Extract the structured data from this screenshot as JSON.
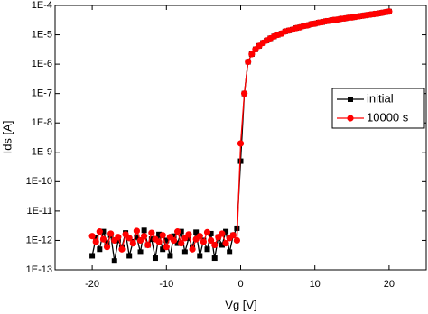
{
  "chart_data": {
    "type": "line",
    "x_label": "Vg [V]",
    "y_label": "Ids [A]",
    "x": [
      -20,
      -19.5,
      -19,
      -18.5,
      -18,
      -17.5,
      -17,
      -16.5,
      -16,
      -15.5,
      -15,
      -14.5,
      -14,
      -13.5,
      -13,
      -12.5,
      -12,
      -11.5,
      -11,
      -10.5,
      -10,
      -9.5,
      -9,
      -8.5,
      -8,
      -7.5,
      -7,
      -6.5,
      -6,
      -5.5,
      -5,
      -4.5,
      -4,
      -3.5,
      -3,
      -2.5,
      -2,
      -1.5,
      -1,
      -0.5,
      0,
      0.5,
      1,
      1.5,
      2,
      2.5,
      3,
      3.5,
      4,
      4.5,
      5,
      5.5,
      6,
      6.5,
      7,
      7.5,
      8,
      8.5,
      9,
      9.5,
      10,
      10.5,
      11,
      11.5,
      12,
      12.5,
      13,
      13.5,
      14,
      14.5,
      15,
      15.5,
      16,
      16.5,
      17,
      17.5,
      18,
      18.5,
      19,
      19.5,
      20
    ],
    "series": [
      {
        "name": "initial",
        "color": "#000000",
        "marker": "square",
        "values": [
          3e-13,
          1.2e-12,
          5e-13,
          2e-12,
          8e-13,
          1.5e-12,
          2e-13,
          1e-12,
          6e-13,
          1.8e-12,
          3e-13,
          9e-13,
          1.3e-12,
          4e-13,
          2.2e-12,
          7e-13,
          1.1e-12,
          2.5e-13,
          1.6e-12,
          5e-13,
          1e-12,
          3e-13,
          1.4e-12,
          8e-13,
          2e-12,
          4e-13,
          1.2e-12,
          6e-13,
          1.9e-12,
          3e-13,
          1e-12,
          5e-13,
          1.7e-12,
          2.5e-13,
          1.3e-12,
          7e-13,
          2e-12,
          4e-13,
          1.5e-12,
          2.6e-12,
          5e-10,
          1e-07,
          1.2e-06,
          2.2e-06,
          3.2e-06,
          4.2e-06,
          5.3e-06,
          6.4e-06,
          7.6e-06,
          8.8e-06,
          1e-05,
          1.1e-05,
          1.3e-05,
          1.4e-05,
          1.5e-05,
          1.7e-05,
          1.8e-05,
          2e-05,
          2.1e-05,
          2.3e-05,
          2.4e-05,
          2.6e-05,
          2.7e-05,
          2.9e-05,
          3e-05,
          3.2e-05,
          3.3e-05,
          3.5e-05,
          3.6e-05,
          3.8e-05,
          3.9e-05,
          4.1e-05,
          4.3e-05,
          4.5e-05,
          4.7e-05,
          4.9e-05,
          5.1e-05,
          5.3e-05,
          5.6e-05,
          5.9e-05,
          6.2e-05
        ]
      },
      {
        "name": "10000 s",
        "color": "#ff0000",
        "marker": "circle",
        "values": [
          1.4e-12,
          9e-13,
          2e-12,
          1.1e-12,
          6e-13,
          1.7e-12,
          1e-12,
          1.3e-12,
          5e-13,
          1.6e-12,
          1.2e-12,
          8e-13,
          2.1e-12,
          1e-12,
          1.4e-12,
          7e-13,
          1.8e-12,
          1.1e-12,
          9e-13,
          1.5e-12,
          6e-13,
          1.3e-12,
          1e-12,
          2e-12,
          8e-13,
          1.2e-12,
          1.6e-12,
          5e-13,
          1.1e-12,
          1.4e-12,
          9e-13,
          1.9e-12,
          1e-12,
          7e-13,
          1.3e-12,
          1.7e-12,
          8e-13,
          1.2e-12,
          1.5e-12,
          1e-12,
          2e-09,
          1e-07,
          1.2e-06,
          2.2e-06,
          3.2e-06,
          4.2e-06,
          5.3e-06,
          6.4e-06,
          7.6e-06,
          8.8e-06,
          1e-05,
          1.1e-05,
          1.3e-05,
          1.4e-05,
          1.5e-05,
          1.7e-05,
          1.8e-05,
          2e-05,
          2.1e-05,
          2.3e-05,
          2.4e-05,
          2.6e-05,
          2.7e-05,
          2.9e-05,
          3e-05,
          3.2e-05,
          3.3e-05,
          3.5e-05,
          3.6e-05,
          3.8e-05,
          3.9e-05,
          4.1e-05,
          4.3e-05,
          4.5e-05,
          4.7e-05,
          4.9e-05,
          5.1e-05,
          5.3e-05,
          5.6e-05,
          5.9e-05,
          6.2e-05
        ]
      }
    ],
    "xlim": [
      -25,
      25
    ],
    "xticks": [
      -20,
      -10,
      0,
      10,
      20
    ],
    "ylim": [
      1e-13,
      0.0001
    ],
    "y_scale": "log",
    "yticks": [
      {
        "value": 1e-13,
        "label": "1E-13"
      },
      {
        "value": 1e-12,
        "label": "1E-12"
      },
      {
        "value": 1e-11,
        "label": "1E-11"
      },
      {
        "value": 1e-10,
        "label": "1E-10"
      },
      {
        "value": 1e-09,
        "label": "1E-9"
      },
      {
        "value": 1e-08,
        "label": "1E-8"
      },
      {
        "value": 1e-07,
        "label": "1E-7"
      },
      {
        "value": 1e-06,
        "label": "1E-6"
      },
      {
        "value": 1e-05,
        "label": "1E-5"
      },
      {
        "value": 0.0001,
        "label": "1E-4"
      }
    ],
    "legend": "right"
  }
}
